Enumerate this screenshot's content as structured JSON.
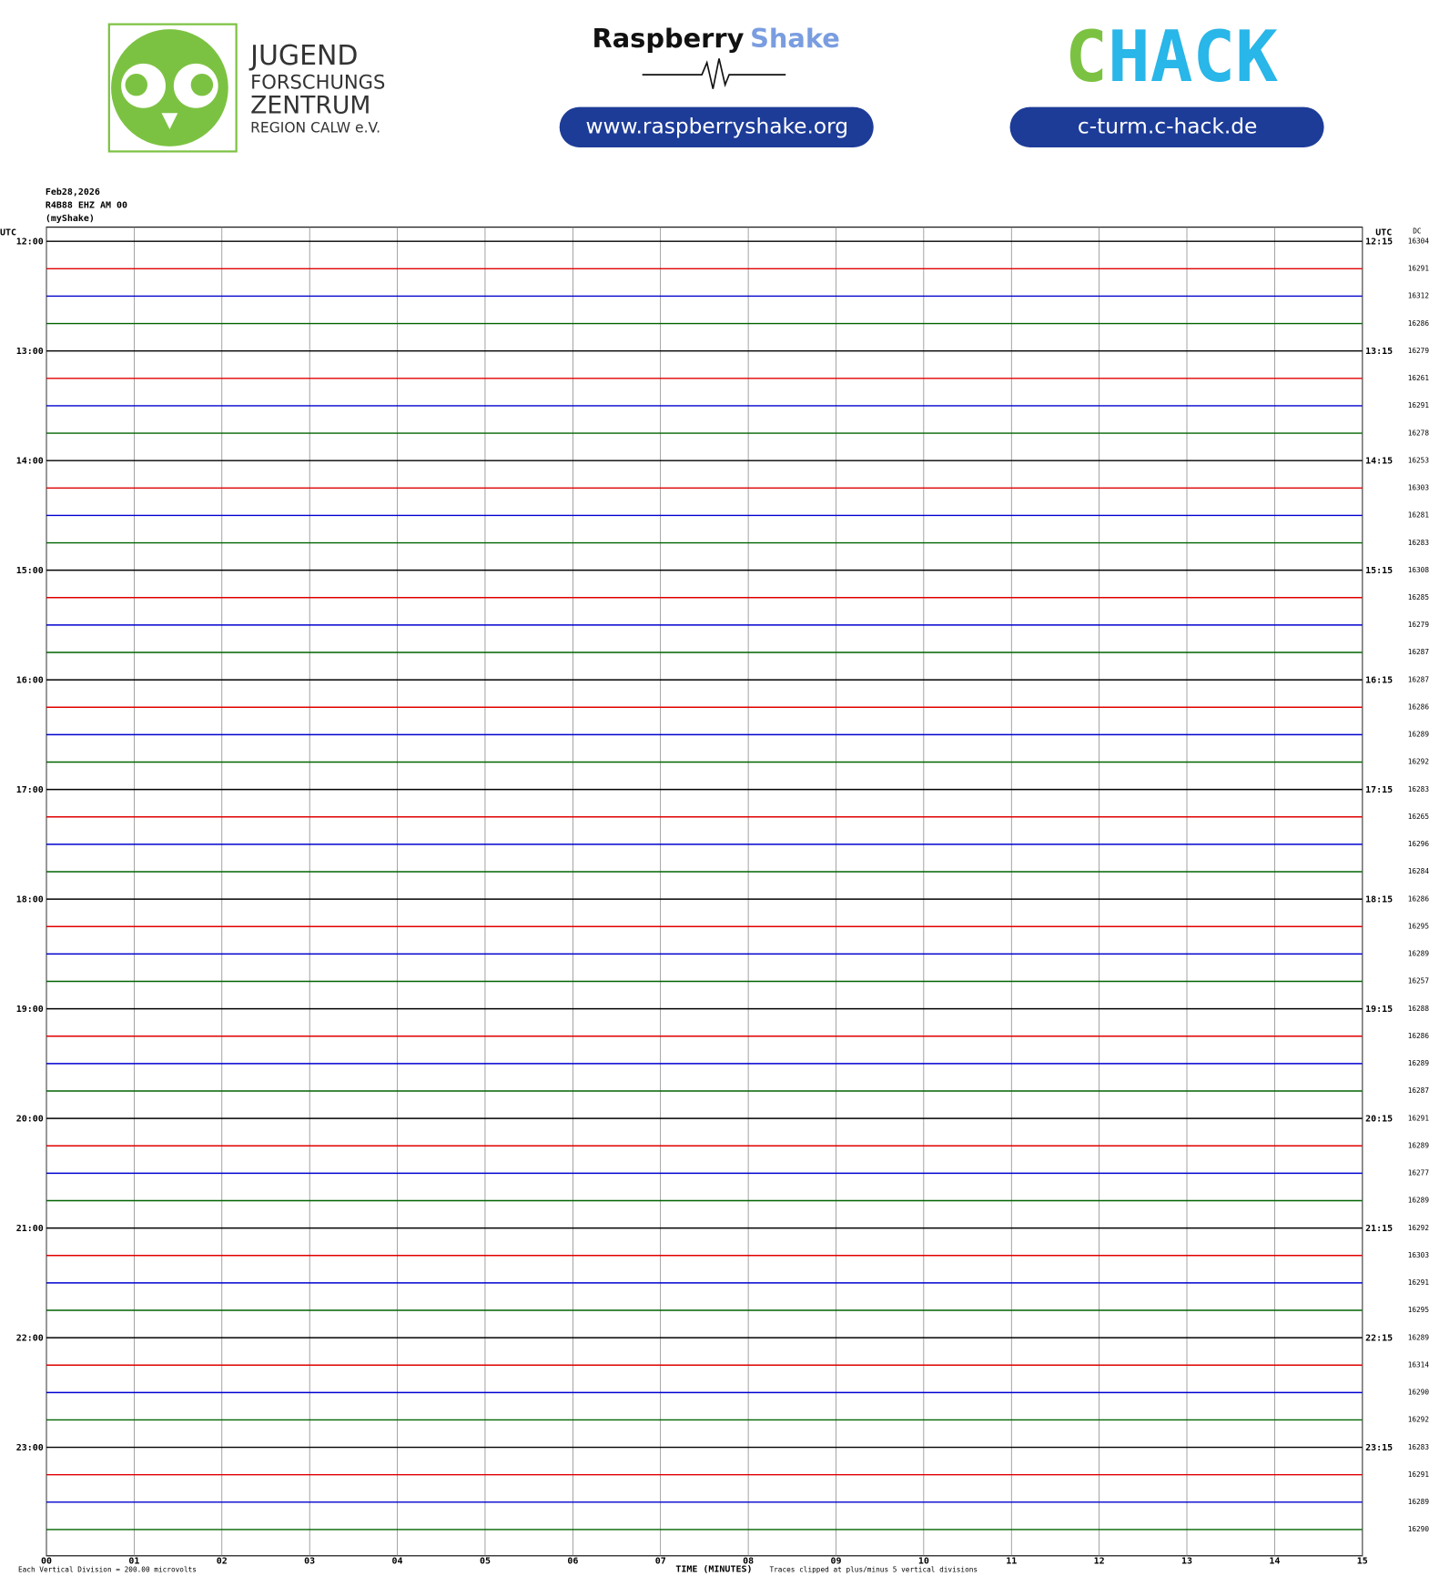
{
  "chart_data": {
    "type": "helicorder",
    "header": {
      "jfz": [
        "JUGEND",
        "FORSCHUNGS",
        "ZENTRUM",
        "REGION CALW e.V."
      ],
      "rs_name": "Raspberry",
      "rs_shake": "Shake",
      "rs_url": "www.raspberryshake.org",
      "chack_c": "C",
      "chack_rest": "HACK",
      "chack_url": "c-turm.c-hack.de"
    },
    "info": [
      "Feb28,2026",
      "R4B88 EHZ AM 00",
      "(myShake)"
    ],
    "left_axis_title": "UTC",
    "right_axis_title": "UTC",
    "dc_title": "DC",
    "hour_labels": [
      "12:00",
      "13:00",
      "14:00",
      "15:00",
      "16:00",
      "17:00",
      "18:00",
      "19:00",
      "20:00",
      "21:00",
      "22:00",
      "23:00"
    ],
    "right_labels": [
      "12:15",
      "13:15",
      "14:15",
      "15:15",
      "16:15",
      "17:15",
      "18:15",
      "19:15",
      "20:15",
      "21:15",
      "22:15",
      "23:15"
    ],
    "dc": [
      16304,
      16291,
      16312,
      16286,
      16279,
      16261,
      16291,
      16278,
      16253,
      16303,
      16281,
      16283,
      16308,
      16285,
      16279,
      16287,
      16287,
      16286,
      16289,
      16292,
      16283,
      16265,
      16296,
      16284,
      16286,
      16295,
      16289,
      16257,
      16288,
      16286,
      16289,
      16287,
      16291,
      16289,
      16277,
      16289,
      16292,
      16303,
      16291,
      16295,
      16289,
      16314,
      16290,
      16292,
      16283,
      16291,
      16289,
      16290
    ],
    "colors": [
      "#000000",
      "#e00000",
      "#0000d0",
      "#006400"
    ],
    "xlim": [
      0,
      15
    ],
    "xticks": [
      {
        "value": 0,
        "label": "00"
      },
      {
        "value": 1,
        "label": "01"
      },
      {
        "value": 2,
        "label": "02"
      },
      {
        "value": 3,
        "label": "03"
      },
      {
        "value": 4,
        "label": "04"
      },
      {
        "value": 5,
        "label": "05"
      },
      {
        "value": 6,
        "label": "06"
      },
      {
        "value": 7,
        "label": "07"
      },
      {
        "value": 8,
        "label": "08"
      },
      {
        "value": 9,
        "label": "09"
      },
      {
        "value": 10,
        "label": "10"
      },
      {
        "value": 11,
        "label": "11"
      },
      {
        "value": 12,
        "label": "12"
      },
      {
        "value": 13,
        "label": "13"
      },
      {
        "value": 14,
        "label": "14"
      },
      {
        "value": 15,
        "label": "15"
      }
    ],
    "x_label": "TIME (MINUTES)",
    "footer_left": "Each Vertical Division =  200.00 microvolts",
    "footer_right": "Traces clipped at plus/minus 5 vertical divisions"
  }
}
